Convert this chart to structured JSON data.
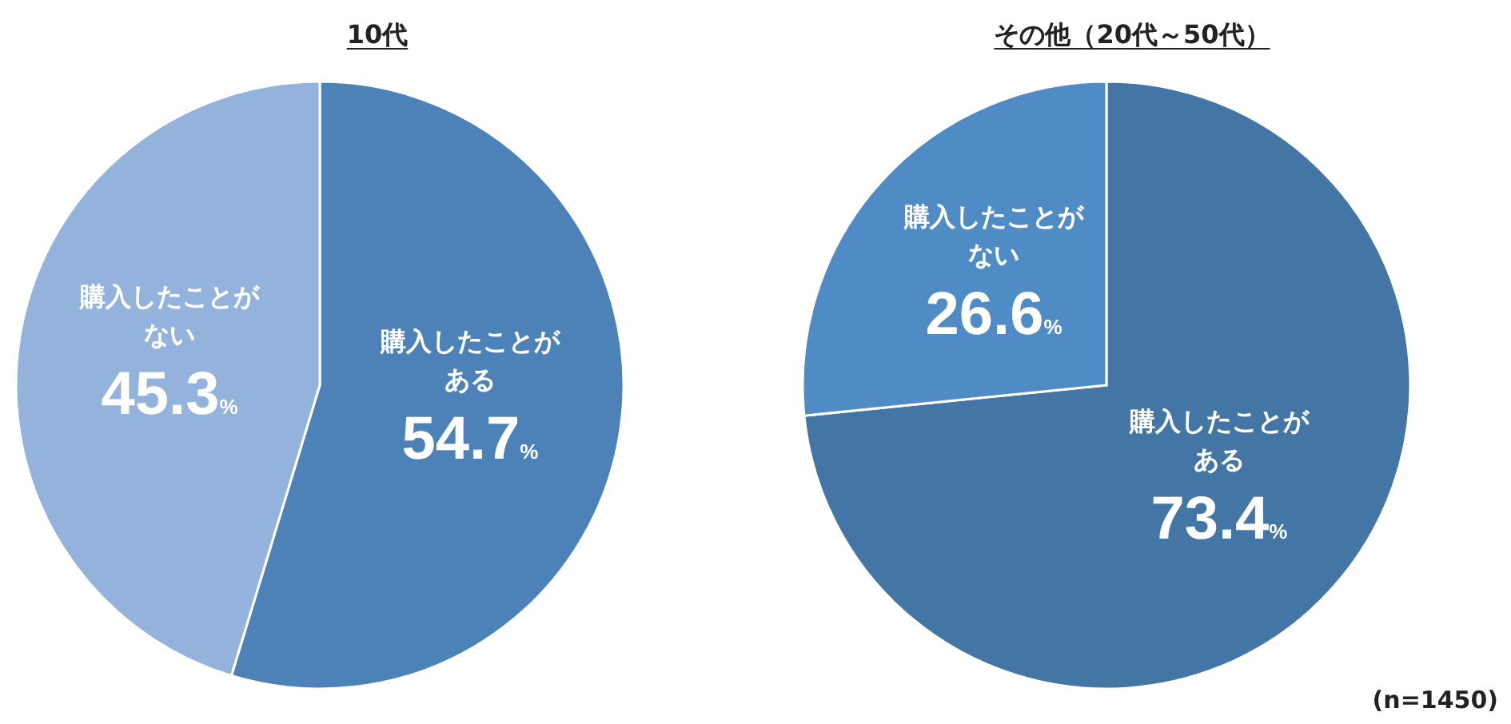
{
  "chart_data": [
    {
      "type": "pie",
      "title": "10代",
      "categories": [
        "購入したことがある",
        "購入したことがない"
      ],
      "values": [
        54.7,
        45.3
      ],
      "colors": [
        "#4c82b8",
        "#93b3dd"
      ],
      "value_labels": [
        "54.7%",
        "45.3%"
      ]
    },
    {
      "type": "pie",
      "title": "その他（20代～50代）",
      "categories": [
        "購入したことがある",
        "購入したことがない"
      ],
      "values": [
        73.4,
        26.6
      ],
      "colors": [
        "#4375a5",
        "#4f8cc6"
      ],
      "value_labels": [
        "73.4%",
        "26.6%"
      ],
      "annotations": [
        "(n=1450)"
      ]
    }
  ]
}
